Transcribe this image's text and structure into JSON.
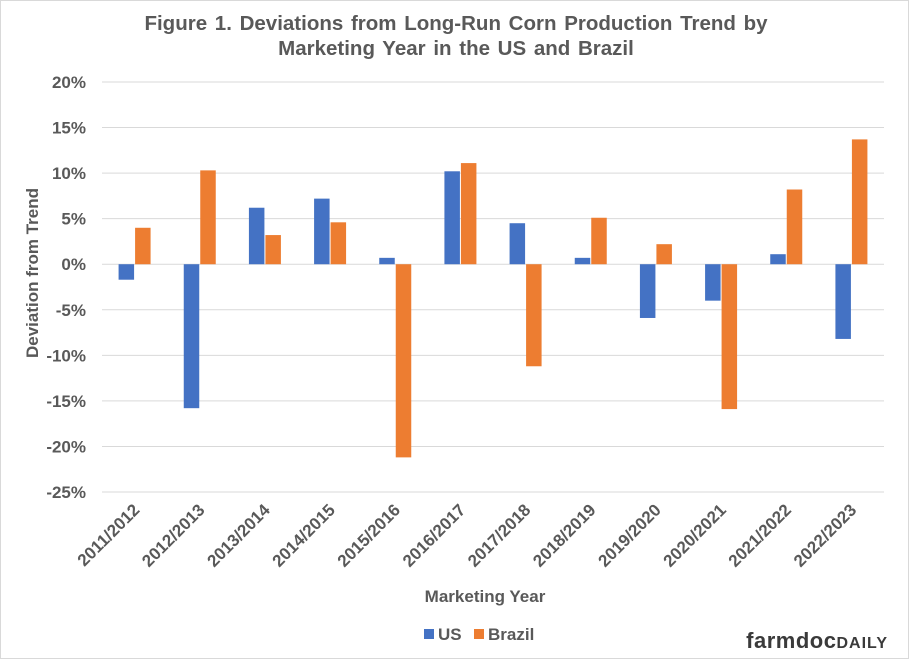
{
  "chart_data": {
    "type": "bar",
    "title_line1": "Figure 1. Deviations from Long-Run Corn Production Trend by",
    "title_line2": "Marketing Year in the US and Brazil",
    "xlabel": "Marketing Year",
    "ylabel": "Deviation from Trend",
    "ylim": [
      -25,
      20
    ],
    "yticks": [
      20,
      15,
      10,
      5,
      0,
      -5,
      -10,
      -15,
      -20,
      -25
    ],
    "ytick_labels": [
      "20%",
      "15%",
      "10%",
      "5%",
      "0%",
      "-5%",
      "-10%",
      "-15%",
      "-20%",
      "-25%"
    ],
    "grid": true,
    "legend_position": "bottom",
    "categories": [
      "2011/2012",
      "2012/2013",
      "2013/2014",
      "2014/2015",
      "2015/2016",
      "2016/2017",
      "2017/2018",
      "2018/2019",
      "2019/2020",
      "2020/2021",
      "2021/2022",
      "2022/2023"
    ],
    "series": [
      {
        "name": "US",
        "color": "#4472c4",
        "values": [
          -1.7,
          -15.8,
          6.2,
          7.2,
          0.7,
          10.2,
          4.5,
          0.7,
          -5.9,
          -4.0,
          1.1,
          -8.2
        ]
      },
      {
        "name": "Brazil",
        "color": "#ed7d31",
        "values": [
          4.0,
          10.3,
          3.2,
          4.6,
          -21.2,
          11.1,
          -11.2,
          5.1,
          2.2,
          -15.9,
          8.2,
          13.7
        ]
      }
    ]
  },
  "branding": {
    "part1": "farmdoc",
    "part2": "DAILY"
  }
}
